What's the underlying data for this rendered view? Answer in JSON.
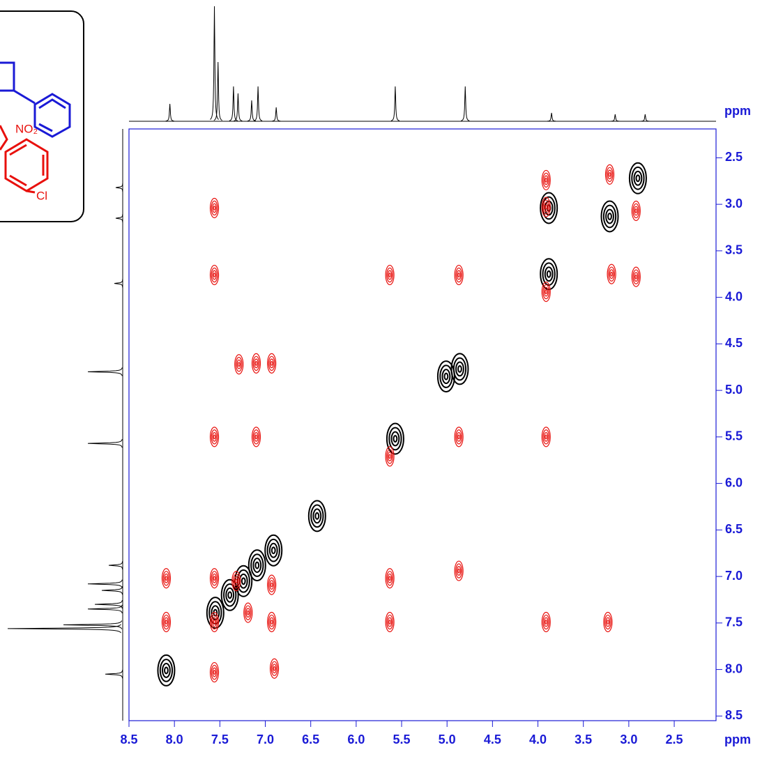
{
  "chart_data": {
    "type": "nmr2d",
    "xlabel": "ppm",
    "ylabel": "ppm",
    "xlim": [
      8.5,
      2.04
    ],
    "ylim": [
      2.19,
      8.55
    ],
    "xticks": [
      8.5,
      {
        "value": 8,
        "label": "8.0"
      },
      7.5,
      {
        "value": 7,
        "label": "7.0"
      },
      6.5,
      {
        "value": 6,
        "label": "6.0"
      },
      5.5,
      {
        "value": 5,
        "label": "5.0"
      },
      4.5,
      {
        "value": 4,
        "label": "4.0"
      },
      3.5,
      {
        "value": 3,
        "label": "3.0"
      },
      2.5
    ],
    "yticks": [
      2.5,
      {
        "value": 3,
        "label": "3.0"
      },
      3.5,
      {
        "value": 4,
        "label": "4.0"
      },
      4.5,
      {
        "value": 5,
        "label": "5.0"
      },
      5.5,
      {
        "value": 6,
        "label": "6.0"
      },
      6.5,
      {
        "value": 7,
        "label": "7.0"
      },
      7.5,
      {
        "value": 8,
        "label": "8.0"
      },
      8.5
    ],
    "series": [
      {
        "color": "#000000",
        "x": [
          8.09,
          7.55,
          7.39,
          7.24,
          7.09,
          6.91,
          6.43,
          5.57,
          4.86,
          3.88,
          3.21,
          2.9,
          3.88,
          5.01
        ],
        "y": [
          8.01,
          7.39,
          7.2,
          7.05,
          6.88,
          6.72,
          6.35,
          5.52,
          4.77,
          3.75,
          3.13,
          2.72,
          3.04,
          4.85
        ]
      },
      {
        "color": "#e8100c",
        "x": [
          7.56,
          7.56,
          3.91,
          3.91,
          3.21,
          2.92,
          3.19,
          2.92,
          5.63,
          4.87,
          3.91,
          7.29,
          7.1,
          6.93,
          7.56,
          7.1,
          3.91,
          4.87,
          5.63,
          8.09,
          7.56,
          7.32,
          5.63,
          4.87,
          8.09,
          7.56,
          6.93,
          5.63,
          3.91,
          3.23,
          7.56,
          6.9,
          6.93,
          7.19
        ],
        "y": [
          3.04,
          3.76,
          2.74,
          3.03,
          2.68,
          3.07,
          3.75,
          3.78,
          3.76,
          3.76,
          3.94,
          4.72,
          4.71,
          4.71,
          5.5,
          5.5,
          5.5,
          5.5,
          5.71,
          7.02,
          7.02,
          7.05,
          7.02,
          6.94,
          7.49,
          7.49,
          7.49,
          7.49,
          7.49,
          7.49,
          8.03,
          7.99,
          7.09,
          7.39
        ]
      }
    ],
    "projection": {
      "ppm": [
        8.05,
        7.56,
        7.52,
        7.35,
        7.3,
        7.15,
        7.08,
        6.88,
        5.57,
        4.8,
        3.85,
        3.15,
        2.82
      ],
      "intensity": [
        25,
        165,
        85,
        50,
        40,
        30,
        50,
        20,
        50,
        50,
        12,
        10,
        10
      ]
    }
  },
  "structure": {
    "labels": [
      "NO₂",
      "Cl"
    ]
  }
}
